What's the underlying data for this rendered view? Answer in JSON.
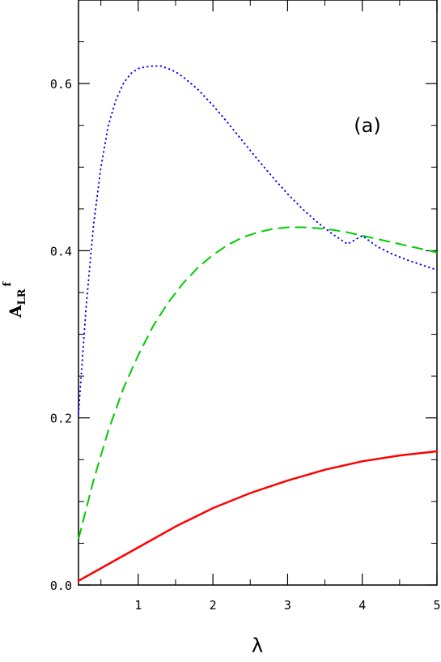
{
  "chart_data": {
    "type": "line",
    "title": "",
    "annotation": "(a)",
    "xlabel": "λ",
    "ylabel_main": "A",
    "ylabel_sub": "LR",
    "ylabel_sup": "f",
    "xlim": [
      0.2,
      5
    ],
    "ylim": [
      0.0,
      0.7
    ],
    "xticks": [
      1,
      2,
      3,
      4,
      5
    ],
    "xtick_labels": [
      "1",
      "2",
      "3",
      "4",
      "5"
    ],
    "yticks": [
      0.0,
      0.2,
      0.4,
      0.6
    ],
    "ytick_labels": [
      "0.0",
      "0.2",
      "0.4",
      "0.6"
    ],
    "grid": false,
    "series": [
      {
        "color": "#0000ff",
        "style": "dotted",
        "x": [
          0.2,
          0.3,
          0.4,
          0.5,
          0.6,
          0.7,
          0.8,
          0.9,
          1.0,
          1.1,
          1.2,
          1.3,
          1.4,
          1.5,
          1.6,
          1.8,
          2.0,
          2.2,
          2.4,
          2.6,
          2.8,
          3.0,
          3.2,
          3.4,
          3.6,
          3.8,
          4.0,
          4.2,
          4.4,
          4.6,
          4.8,
          5.0
        ],
        "y": [
          0.205,
          0.33,
          0.43,
          0.5,
          0.55,
          0.58,
          0.6,
          0.612,
          0.618,
          0.62,
          0.621,
          0.621,
          0.618,
          0.614,
          0.608,
          0.593,
          0.574,
          0.553,
          0.531,
          0.509,
          0.488,
          0.468,
          0.45,
          0.434,
          0.42,
          0.408,
          0.418,
          0.405,
          0.396,
          0.389,
          0.383,
          0.377
        ]
      },
      {
        "color": "#00cc00",
        "style": "dashed",
        "x": [
          0.2,
          0.4,
          0.6,
          0.8,
          1.0,
          1.2,
          1.4,
          1.6,
          1.8,
          2.0,
          2.2,
          2.4,
          2.6,
          2.8,
          3.0,
          3.2,
          3.4,
          3.6,
          3.8,
          4.0,
          4.2,
          4.4,
          4.6,
          4.8,
          5.0
        ],
        "y": [
          0.055,
          0.125,
          0.185,
          0.235,
          0.275,
          0.31,
          0.338,
          0.361,
          0.38,
          0.395,
          0.407,
          0.416,
          0.422,
          0.426,
          0.428,
          0.428,
          0.427,
          0.425,
          0.422,
          0.418,
          0.414,
          0.41,
          0.406,
          0.402,
          0.398
        ]
      },
      {
        "color": "#ff0000",
        "style": "solid",
        "x": [
          0.2,
          0.5,
          1.0,
          1.5,
          2.0,
          2.5,
          3.0,
          3.5,
          4.0,
          4.5,
          5.0
        ],
        "y": [
          0.005,
          0.02,
          0.045,
          0.07,
          0.092,
          0.11,
          0.125,
          0.138,
          0.148,
          0.155,
          0.16
        ]
      }
    ]
  }
}
